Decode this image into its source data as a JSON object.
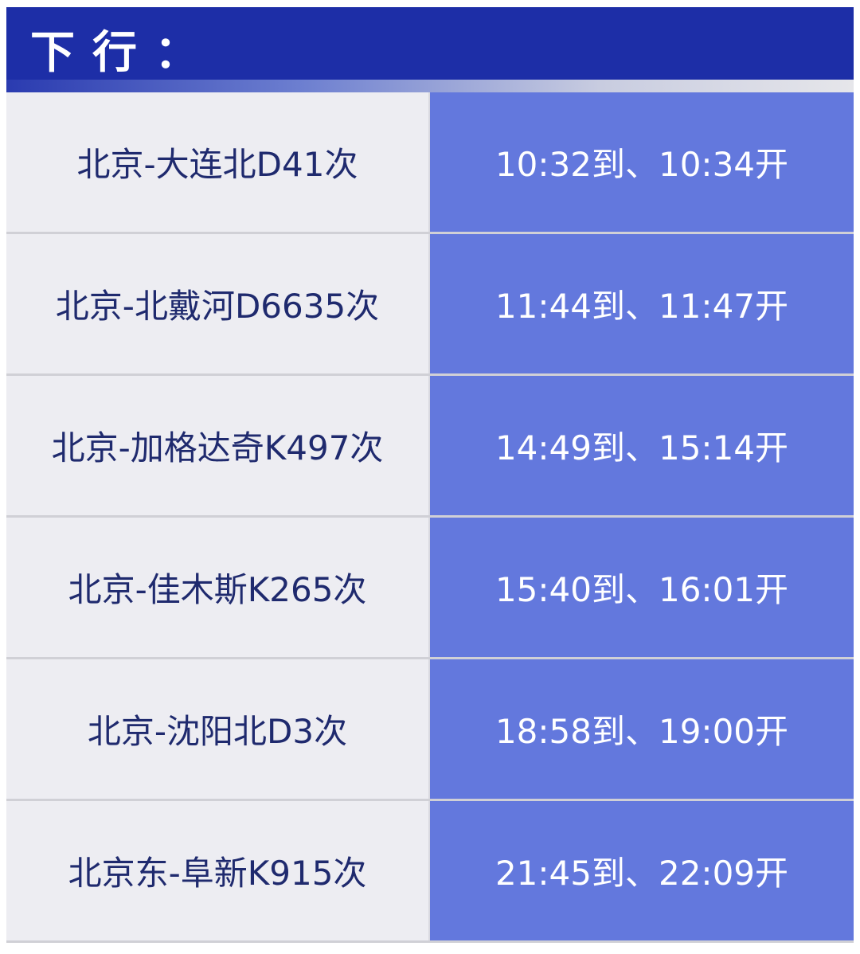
{
  "header": {
    "title": "下行："
  },
  "colors": {
    "header": "#1d2ea7",
    "time_cell": "#6378dd",
    "train_cell": "#ededf2",
    "train_text": "#1f2a6e"
  },
  "rows": [
    {
      "train": "北京-大连北D41次",
      "time": "10:32到、10:34开"
    },
    {
      "train": "北京-北戴河D6635次",
      "time": "11:44到、11:47开"
    },
    {
      "train": "北京-加格达奇K497次",
      "time": "14:49到、15:14开"
    },
    {
      "train": "北京-佳木斯K265次",
      "time": "15:40到、16:01开"
    },
    {
      "train": "北京-沈阳北D3次",
      "time": "18:58到、19:00开"
    },
    {
      "train": "北京东-阜新K915次",
      "time": "21:45到、22:09开"
    }
  ]
}
